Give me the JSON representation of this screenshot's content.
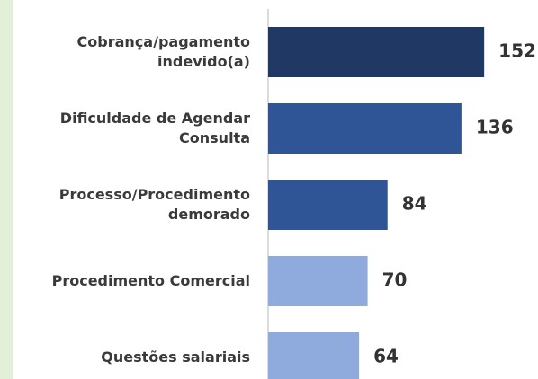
{
  "chart_data": {
    "type": "barh",
    "categories": [
      "Cobrança/pagamento\nindevido(a)",
      "Dificuldade de Agendar\nConsulta",
      "Processo/Procedimento\ndemorado",
      "Procedimento Comercial",
      "Questões salariais"
    ],
    "values": [
      152,
      136,
      84,
      70,
      64
    ],
    "colors": [
      "#203864",
      "#2f5597",
      "#2f5597",
      "#8faadc",
      "#8faadc"
    ]
  }
}
